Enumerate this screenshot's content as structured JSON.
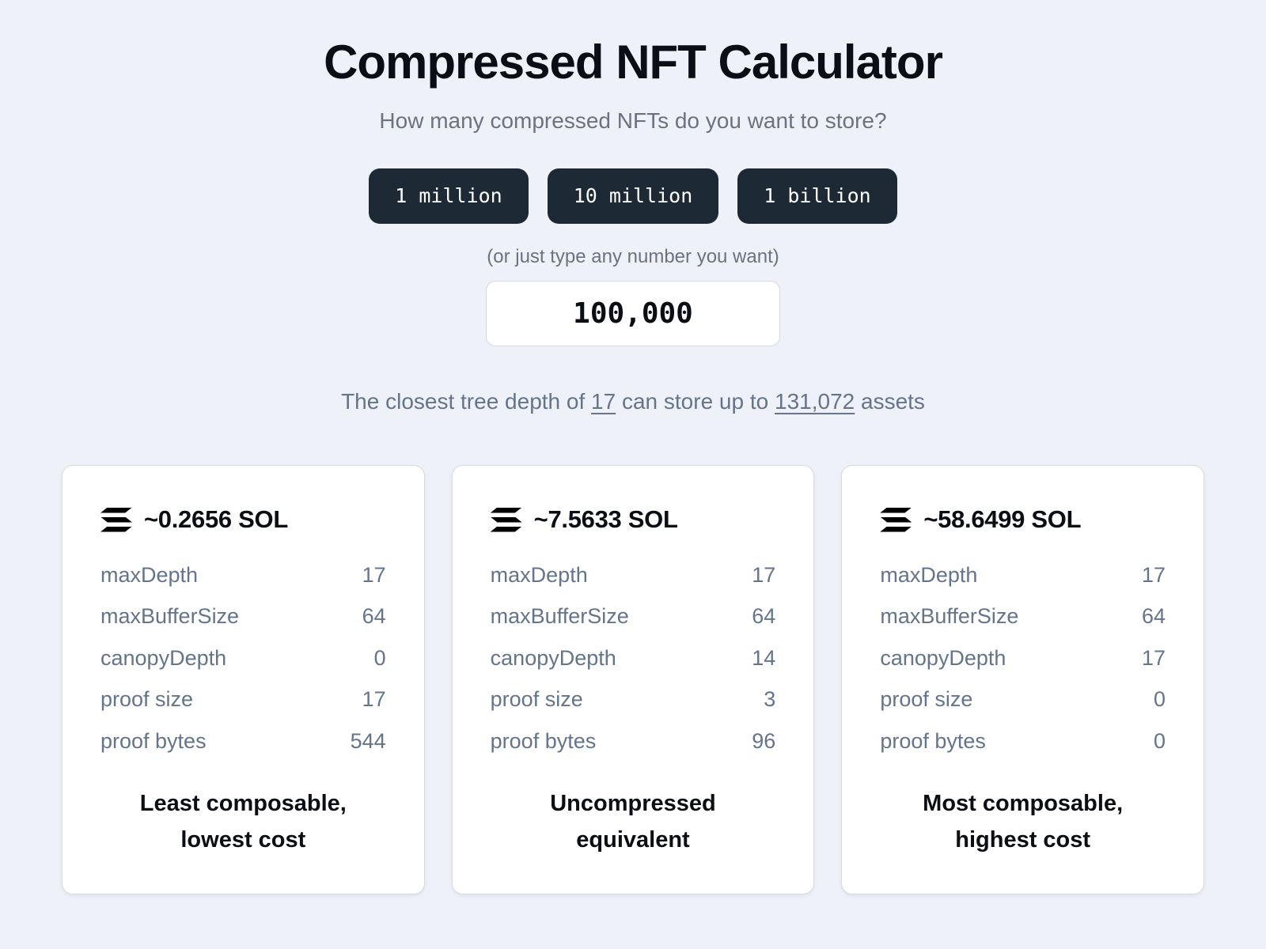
{
  "page": {
    "title": "Compressed NFT Calculator",
    "subtitle": "How many compressed NFTs do you want to store?",
    "preset_buttons": [
      "1 million",
      "10 million",
      "1 billion"
    ],
    "input_hint": "(or just type any number you want)",
    "amount_input": {
      "value": "100,000"
    },
    "depth_summary": {
      "prefix": "The closest tree depth of ",
      "depth": "17",
      "middle": " can store up to ",
      "capacity": "131,072",
      "suffix": " assets"
    }
  },
  "cards": [
    {
      "cost_sol": "~0.2656 SOL",
      "icon": "solana-icon",
      "rows": [
        {
          "label": "maxDepth",
          "value": "17"
        },
        {
          "label": "maxBufferSize",
          "value": "64"
        },
        {
          "label": "canopyDepth",
          "value": "0"
        },
        {
          "label": "proof size",
          "value": "17"
        },
        {
          "label": "proof bytes",
          "value": "544"
        }
      ],
      "footer_lines": [
        "Least composable,",
        "lowest cost"
      ]
    },
    {
      "cost_sol": "~7.5633 SOL",
      "icon": "solana-icon",
      "rows": [
        {
          "label": "maxDepth",
          "value": "17"
        },
        {
          "label": "maxBufferSize",
          "value": "64"
        },
        {
          "label": "canopyDepth",
          "value": "14"
        },
        {
          "label": "proof size",
          "value": "3"
        },
        {
          "label": "proof bytes",
          "value": "96"
        }
      ],
      "footer_lines": [
        "Uncompressed",
        "equivalent"
      ]
    },
    {
      "cost_sol": "~58.6499 SOL",
      "icon": "solana-icon",
      "rows": [
        {
          "label": "maxDepth",
          "value": "17"
        },
        {
          "label": "maxBufferSize",
          "value": "64"
        },
        {
          "label": "canopyDepth",
          "value": "17"
        },
        {
          "label": "proof size",
          "value": "0"
        },
        {
          "label": "proof bytes",
          "value": "0"
        }
      ],
      "footer_lines": [
        "Most composable,",
        "highest cost"
      ]
    }
  ],
  "colors": {
    "background": "#eef1f7",
    "button_background": "#1e2936",
    "button_text": "#ffffff",
    "card_background": "#ffffff",
    "card_border": "#d7dbe2",
    "text_primary": "#0b0e14",
    "text_muted": "#6b7280",
    "row_text": "#64748b",
    "icon": "#000000"
  }
}
